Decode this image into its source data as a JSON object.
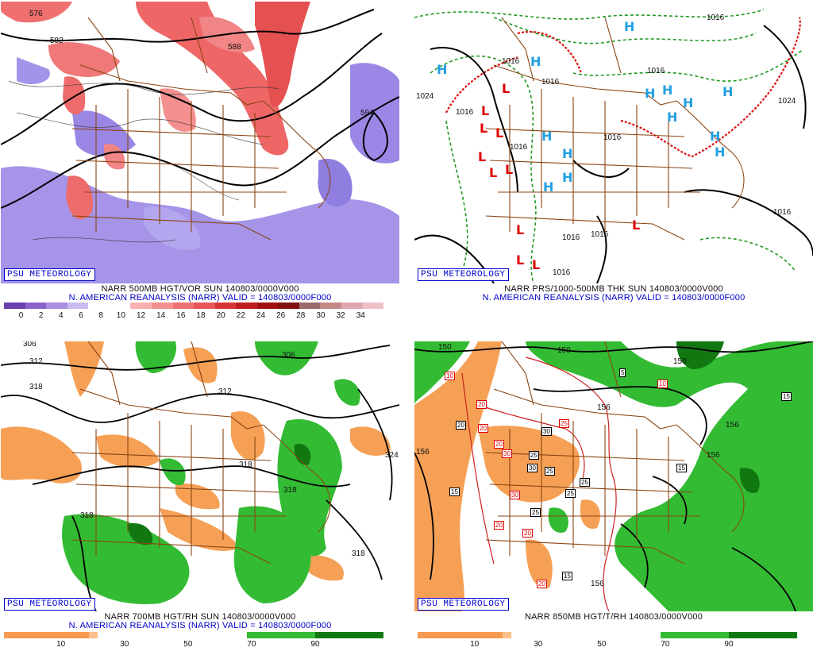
{
  "credit": "PSU METEOROLOGY",
  "colors": {
    "credit_blue": "#0000cc",
    "state_lines": "#8b4513",
    "high_blue": "#22a0e0",
    "low_red": "#dd0000",
    "vort_purple": "#8866dd",
    "vort_red": "#e85555",
    "rh_green": "#33bb33",
    "rh_orange": "#f5a055"
  },
  "panels": [
    {
      "id": "p500",
      "title_line1": "NARR 500MB HGT/VOR SUN 140803/0000V000",
      "title_line2": "N. AMERICAN REANALYSIS (NARR) VALID = 140803/0000F000",
      "colorbar_labels": [
        "0",
        "2",
        "4",
        "6",
        "8",
        "10",
        "12",
        "14",
        "16",
        "18",
        "20",
        "22",
        "24",
        "26",
        "28",
        "30",
        "32",
        "34"
      ],
      "contour_labels": [
        "576",
        "582",
        "594",
        "588"
      ]
    },
    {
      "id": "pmslp",
      "title_line1": "NARR PRS/1000-500MB THK SUN 140803/0000V000",
      "title_line2": "N. AMERICAN REANALYSIS (NARR) VALID = 140803/0000F000",
      "pressure_labels": [
        "1016",
        "1024",
        "1016",
        "1016",
        "1016",
        "1024",
        "1016",
        "1016",
        "1016",
        "1016",
        "1016",
        "1016",
        "1016"
      ],
      "high_symbol": "H",
      "low_symbol": "L"
    },
    {
      "id": "p700",
      "title_line1": "NARR 700MB HGT/RH SUN 140803/0000V000",
      "title_line2": "N. AMERICAN REANALYSIS (NARR) VALID = 140803/0000F000",
      "colorbar_labels": [
        "10",
        "30",
        "50",
        "70",
        "90"
      ],
      "contour_labels": [
        "306",
        "312",
        "318",
        "306",
        "312",
        "318",
        "318",
        "318",
        "318",
        "324"
      ]
    },
    {
      "id": "p850",
      "title_line1": "NARR 850MB HGT/T/RH 140803/0000V000",
      "title_line2": "",
      "colorbar_labels": [
        "10",
        "30",
        "50",
        "70",
        "90"
      ],
      "contour_labels": [
        "150",
        "150",
        "156",
        "156",
        "156",
        "156",
        "156",
        "150"
      ],
      "temp_boxes": [
        "10",
        "5",
        "10",
        "15",
        "20",
        "20",
        "20",
        "25",
        "30",
        "30",
        "25",
        "30",
        "25",
        "15",
        "15",
        "20",
        "25",
        "25",
        "20",
        "20",
        "25",
        "20",
        "15",
        "30"
      ]
    }
  ]
}
